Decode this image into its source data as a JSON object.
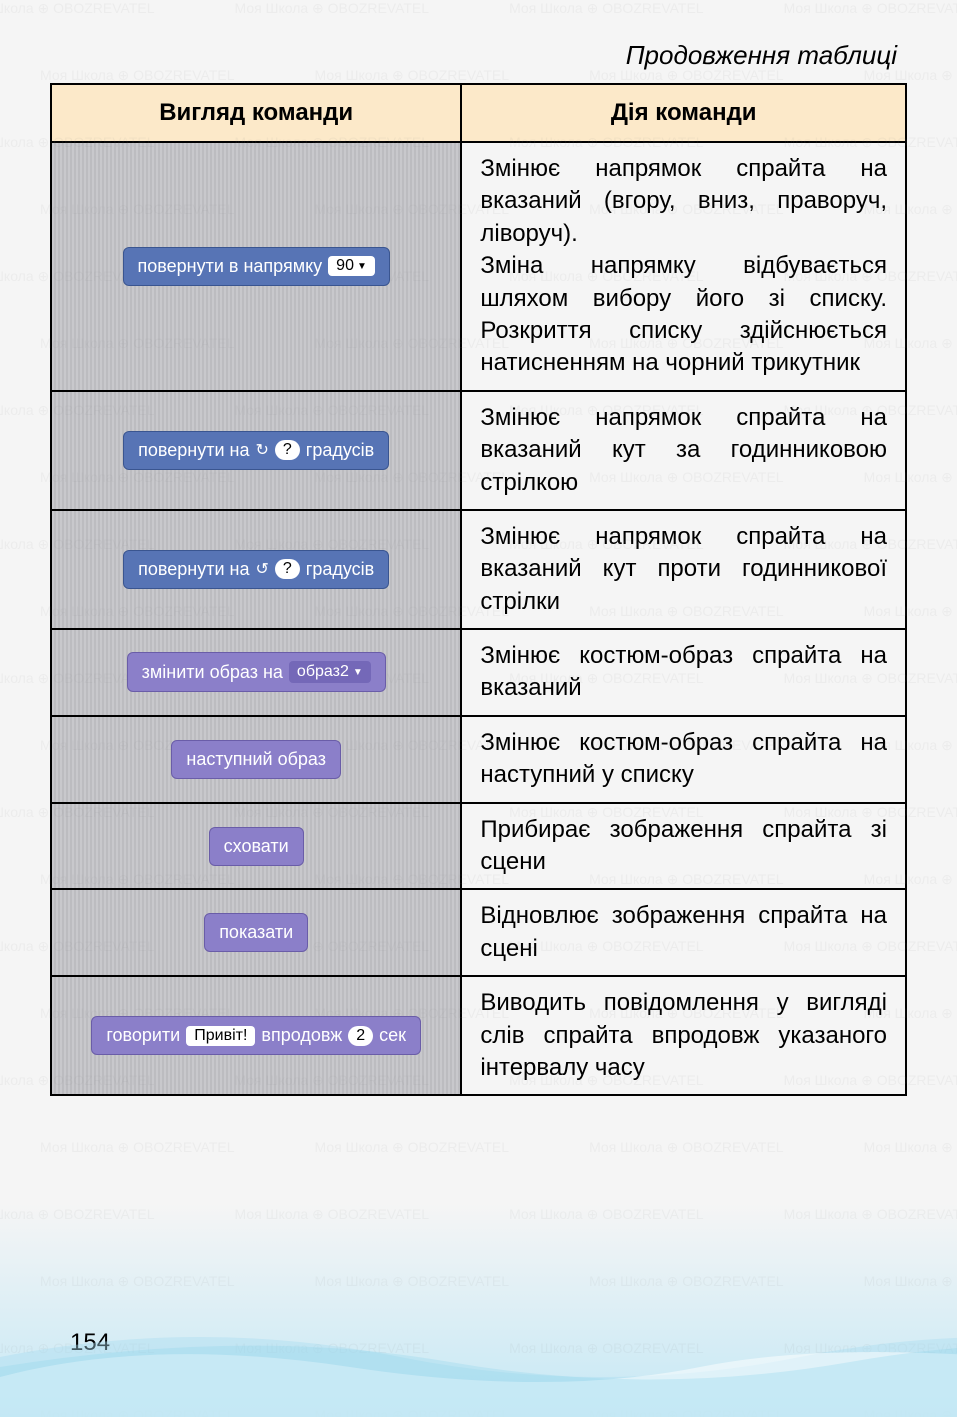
{
  "watermark_text": "Моя Школа ⊕ OBOZREVATEL",
  "caption": "Продовження таблиці",
  "page_number": "154",
  "headers": {
    "col1": "Вигляд команди",
    "col2": "Дія команди"
  },
  "colors": {
    "motion_block": "#5774b5",
    "motion_border": "#3a5590",
    "looks_block": "#8b7fc9",
    "looks_border": "#6a5da8",
    "header_bg": "#fce9c9",
    "pill_bg": "#ffffff",
    "dropdown_purple": "#7468b8",
    "cell_grey": "#c8c8cc"
  },
  "rows": [
    {
      "block_type": "motion",
      "label_pre": "повернути в напрямку",
      "value": "90",
      "has_dropdown": true,
      "desc": "Змінює напрямок спрайта на вказаний (вгору, вниз, праворуч, ліворуч).\nЗміна напрямку відбувається шляхом вибору його зі списку. Розкриття списку здійснюється натисненням на чорний трикутник"
    },
    {
      "block_type": "motion",
      "label_pre": "повернути на",
      "icon": "cw",
      "value": "?",
      "label_post": "градусів",
      "desc": "Змінює напрямок спрайта на вказаний кут за годинниковою стрілкою"
    },
    {
      "block_type": "motion",
      "label_pre": "повернути на",
      "icon": "ccw",
      "value": "?",
      "label_post": "градусів",
      "desc": "Змінює напрямок спрайта на вказаний кут проти годинникової стрілки"
    },
    {
      "block_type": "looks",
      "label_pre": "змінити образ на",
      "dropdown_value": "образ2",
      "desc": "Змінює костюм-образ спрайта на вказаний"
    },
    {
      "block_type": "looks",
      "label_pre": "наступний образ",
      "desc": "Змінює костюм-образ спрайта на наступний у списку"
    },
    {
      "block_type": "looks",
      "label_pre": "сховати",
      "desc": "Прибирає зображення спрайта зі сцени"
    },
    {
      "block_type": "looks",
      "label_pre": "показати",
      "desc": "Відновлює зображення спрайта на сцені"
    },
    {
      "block_type": "looks",
      "label_pre": "говорити",
      "text_value": "Привіт!",
      "label_mid": "впродовж",
      "value": "2",
      "label_post": "сек",
      "desc": "Виводить повідомлення у вигляді слів спрайта впродовж указаного інтервалу часу"
    }
  ]
}
